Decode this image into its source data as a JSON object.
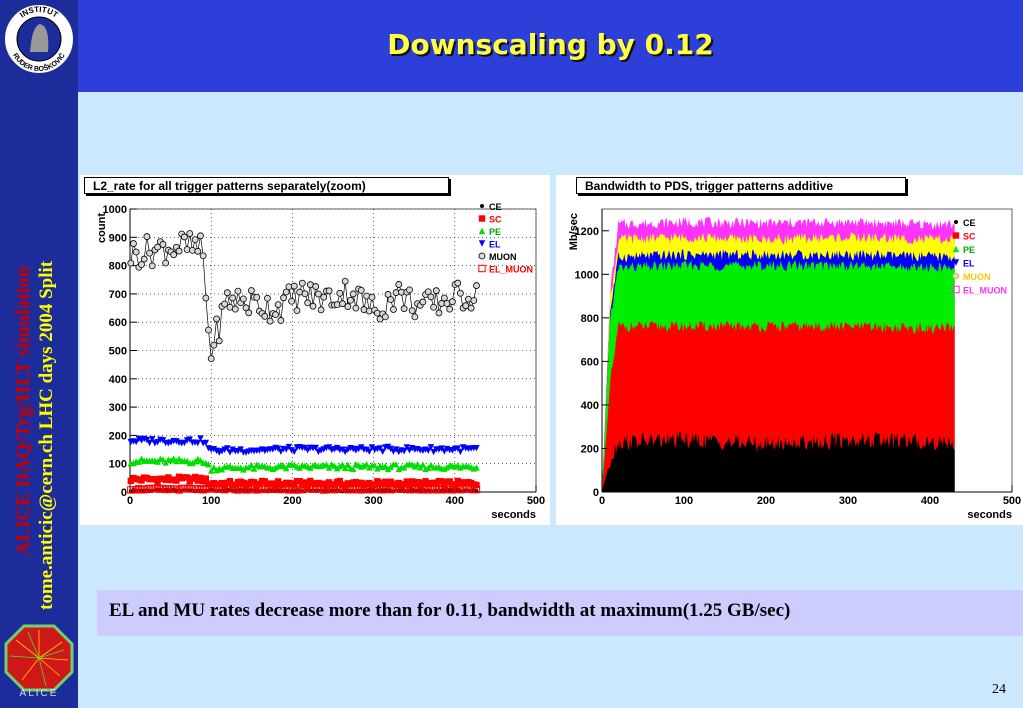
{
  "slide": {
    "title": "Downscaling by 0.12",
    "sidebar_line1": "ALICE DAQ/Trg/HLT simulation",
    "sidebar_line2": "tome.anticic@cern.ch   LHC days 2004 Split",
    "logo_text_top": "INSTITUT",
    "logo_text_bottom": "RUDER BOŠKOVIĆ",
    "alice_logo_text": "ALICE",
    "bullet": "EL and MU rates  decrease more than for 0.11, bandwidth at maximum(1.25 GB/sec)",
    "page_number": "24"
  },
  "chart_data": [
    {
      "type": "scatter",
      "title": "L2_rate for all trigger patterns separately(zoom)",
      "xlabel": "seconds",
      "ylabel": "count",
      "xlim": [
        0,
        500
      ],
      "ylim": [
        0,
        1000
      ],
      "xticks": [
        "0",
        "100",
        "200",
        "300",
        "400",
        "500"
      ],
      "yticks": [
        "0",
        "100",
        "200",
        "300",
        "400",
        "500",
        "600",
        "700",
        "800",
        "900",
        "1000"
      ],
      "grid": true,
      "legend": "top-right",
      "series": [
        {
          "name": "CE",
          "color": "#000000",
          "marker": "dot",
          "x": [
            0,
            100,
            200,
            300,
            400,
            430
          ],
          "values": [
            5,
            5,
            5,
            5,
            5,
            5
          ]
        },
        {
          "name": "SC",
          "color": "#ff0000",
          "marker": "square",
          "x": [
            0,
            90,
            100,
            200,
            300,
            430
          ],
          "values": [
            45,
            45,
            30,
            30,
            30,
            30
          ]
        },
        {
          "name": "PE",
          "color": "#00dd00",
          "marker": "triangle-up",
          "x": [
            0,
            90,
            100,
            200,
            300,
            430
          ],
          "values": [
            110,
            110,
            85,
            90,
            90,
            90
          ]
        },
        {
          "name": "EL",
          "color": "#0000ff",
          "marker": "triangle-down",
          "x": [
            0,
            90,
            100,
            200,
            300,
            430
          ],
          "values": [
            180,
            180,
            145,
            150,
            150,
            150
          ]
        },
        {
          "name": "MUON",
          "color": "#000000",
          "marker": "open-circle",
          "x": [
            0,
            20,
            40,
            60,
            80,
            90,
            95,
            100,
            120,
            150,
            180,
            210,
            240,
            270,
            300,
            330,
            360,
            390,
            420,
            430
          ],
          "values": [
            840,
            850,
            860,
            870,
            860,
            850,
            600,
            500,
            680,
            670,
            650,
            700,
            680,
            710,
            640,
            700,
            650,
            680,
            700,
            680
          ]
        },
        {
          "name": "EL_MUON",
          "color": "#ff0000",
          "marker": "open-square",
          "x": [
            0,
            430
          ],
          "values": [
            10,
            10
          ]
        }
      ]
    },
    {
      "type": "area",
      "title": "Bandwidth to PDS, trigger patterns additive",
      "xlabel": "seconds",
      "ylabel": "Mb/sec",
      "xlim": [
        0,
        500
      ],
      "ylim": [
        0,
        1300
      ],
      "xticks": [
        "0",
        "100",
        "200",
        "300",
        "400",
        "500"
      ],
      "yticks": [
        "0",
        "200",
        "400",
        "600",
        "800",
        "1000",
        "1200"
      ],
      "grid": false,
      "legend": "top-right",
      "x": [
        0,
        10,
        20,
        100,
        200,
        300,
        400,
        430
      ],
      "series": [
        {
          "name": "CE",
          "color": "#000000",
          "values": [
            0,
            150,
            230,
            240,
            220,
            240,
            230,
            230
          ]
        },
        {
          "name": "SC",
          "color": "#ff0000",
          "values": [
            0,
            500,
            760,
            760,
            760,
            760,
            750,
            750
          ]
        },
        {
          "name": "PE",
          "color": "#00ee00",
          "values": [
            0,
            800,
            1030,
            1040,
            1040,
            1040,
            1030,
            1030
          ]
        },
        {
          "name": "EL",
          "color": "#0000ff",
          "values": [
            0,
            830,
            1080,
            1090,
            1090,
            1090,
            1080,
            1080
          ]
        },
        {
          "name": "MUON",
          "color": "#ffff00",
          "values": [
            0,
            880,
            1160,
            1170,
            1160,
            1170,
            1160,
            1160
          ]
        },
        {
          "name": "EL_MUON",
          "color": "#ff33ff",
          "values": [
            0,
            920,
            1230,
            1240,
            1235,
            1240,
            1230,
            1230
          ]
        }
      ]
    }
  ]
}
